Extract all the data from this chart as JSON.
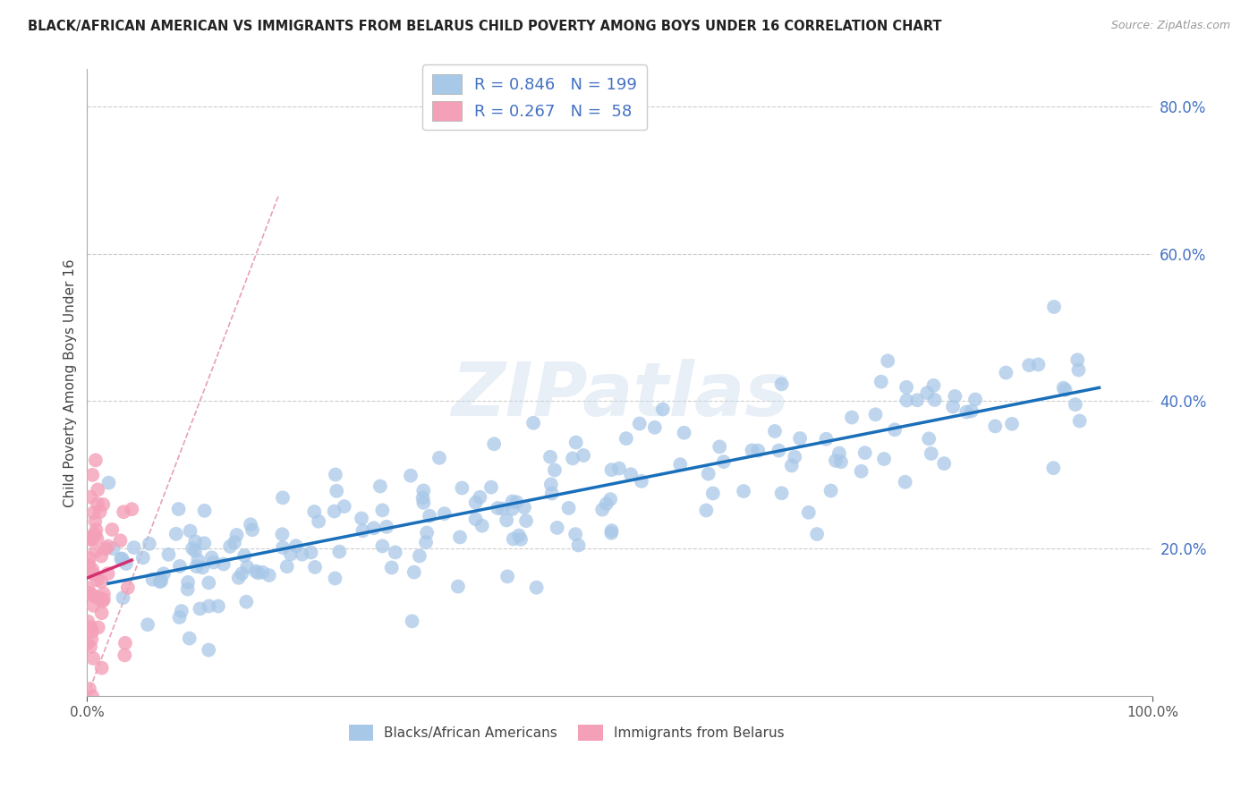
{
  "title": "BLACK/AFRICAN AMERICAN VS IMMIGRANTS FROM BELARUS CHILD POVERTY AMONG BOYS UNDER 16 CORRELATION CHART",
  "source": "Source: ZipAtlas.com",
  "ylabel": "Child Poverty Among Boys Under 16",
  "blue_R": 0.846,
  "blue_N": 199,
  "pink_R": 0.267,
  "pink_N": 58,
  "blue_label": "Blacks/African Americans",
  "pink_label": "Immigrants from Belarus",
  "blue_color": "#a8c8e8",
  "pink_color": "#f4a0b8",
  "blue_line_color": "#1a6fba",
  "pink_line_color": "#d43070",
  "diagonal_color": "#e8a0b8",
  "background_color": "#ffffff",
  "grid_color": "#cccccc",
  "watermark": "ZIPatlas",
  "xlim": [
    0,
    1.0
  ],
  "ylim": [
    0,
    0.85
  ],
  "ytick_color": "#4472c4",
  "xtick_color": "#555555"
}
